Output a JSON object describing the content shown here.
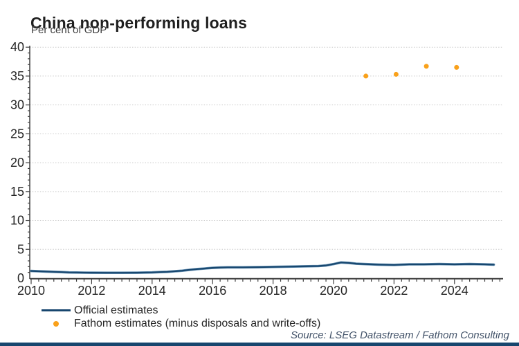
{
  "header": {
    "title": "China non-performing loans",
    "subtitle": "Per cent of GDP"
  },
  "source": "Source: LSEG Datastream / Fathom Consulting",
  "colors": {
    "line": "#17466e",
    "line_halo": "#4f81a9",
    "dot": "#f9a11b",
    "grid": "#c9c9c9",
    "axis": "#3f3f3f",
    "tick_label": "#262626",
    "footer_bar": "#17466e"
  },
  "chart_data": {
    "type": "line",
    "title": "China non-performing loans",
    "subtitle": "Per cent of GDP",
    "ylabel": "Per cent of GDP",
    "ylim": [
      0,
      40
    ],
    "yticks": [
      0,
      5,
      10,
      15,
      20,
      25,
      30,
      35,
      40
    ],
    "xlim": [
      2010,
      2025.5
    ],
    "xticks": [
      2010,
      2012,
      2014,
      2016,
      2018,
      2020,
      2022,
      2024
    ],
    "grid": "horizontal-dotted",
    "legend_position": "bottom-left",
    "series": [
      {
        "name": "Official estimates",
        "type": "line",
        "color": "#17466e",
        "points": [
          [
            2010.0,
            1.25
          ],
          [
            2010.25,
            1.2
          ],
          [
            2010.5,
            1.15
          ],
          [
            2010.75,
            1.1
          ],
          [
            2011.0,
            1.05
          ],
          [
            2011.25,
            1.0
          ],
          [
            2011.5,
            0.98
          ],
          [
            2011.75,
            0.96
          ],
          [
            2012.0,
            0.95
          ],
          [
            2012.5,
            0.93
          ],
          [
            2013.0,
            0.93
          ],
          [
            2013.5,
            0.95
          ],
          [
            2014.0,
            1.0
          ],
          [
            2014.25,
            1.05
          ],
          [
            2014.5,
            1.1
          ],
          [
            2014.75,
            1.2
          ],
          [
            2015.0,
            1.3
          ],
          [
            2015.25,
            1.45
          ],
          [
            2015.5,
            1.58
          ],
          [
            2015.75,
            1.68
          ],
          [
            2016.0,
            1.78
          ],
          [
            2016.25,
            1.85
          ],
          [
            2016.5,
            1.88
          ],
          [
            2017.0,
            1.88
          ],
          [
            2017.5,
            1.9
          ],
          [
            2018.0,
            1.95
          ],
          [
            2018.5,
            2.0
          ],
          [
            2019.0,
            2.05
          ],
          [
            2019.5,
            2.1
          ],
          [
            2019.75,
            2.2
          ],
          [
            2020.0,
            2.45
          ],
          [
            2020.25,
            2.72
          ],
          [
            2020.5,
            2.65
          ],
          [
            2020.75,
            2.5
          ],
          [
            2021.0,
            2.45
          ],
          [
            2021.5,
            2.35
          ],
          [
            2022.0,
            2.3
          ],
          [
            2022.5,
            2.4
          ],
          [
            2023.0,
            2.4
          ],
          [
            2023.5,
            2.45
          ],
          [
            2024.0,
            2.4
          ],
          [
            2024.5,
            2.45
          ],
          [
            2025.0,
            2.4
          ],
          [
            2025.3,
            2.35
          ]
        ]
      },
      {
        "name": "Fathom estimates (minus disposals and write-offs)",
        "type": "scatter",
        "color": "#f9a11b",
        "points": [
          [
            2021,
            35.0
          ],
          [
            2022,
            35.3
          ],
          [
            2023,
            36.7
          ],
          [
            2024,
            36.5
          ]
        ]
      }
    ]
  }
}
